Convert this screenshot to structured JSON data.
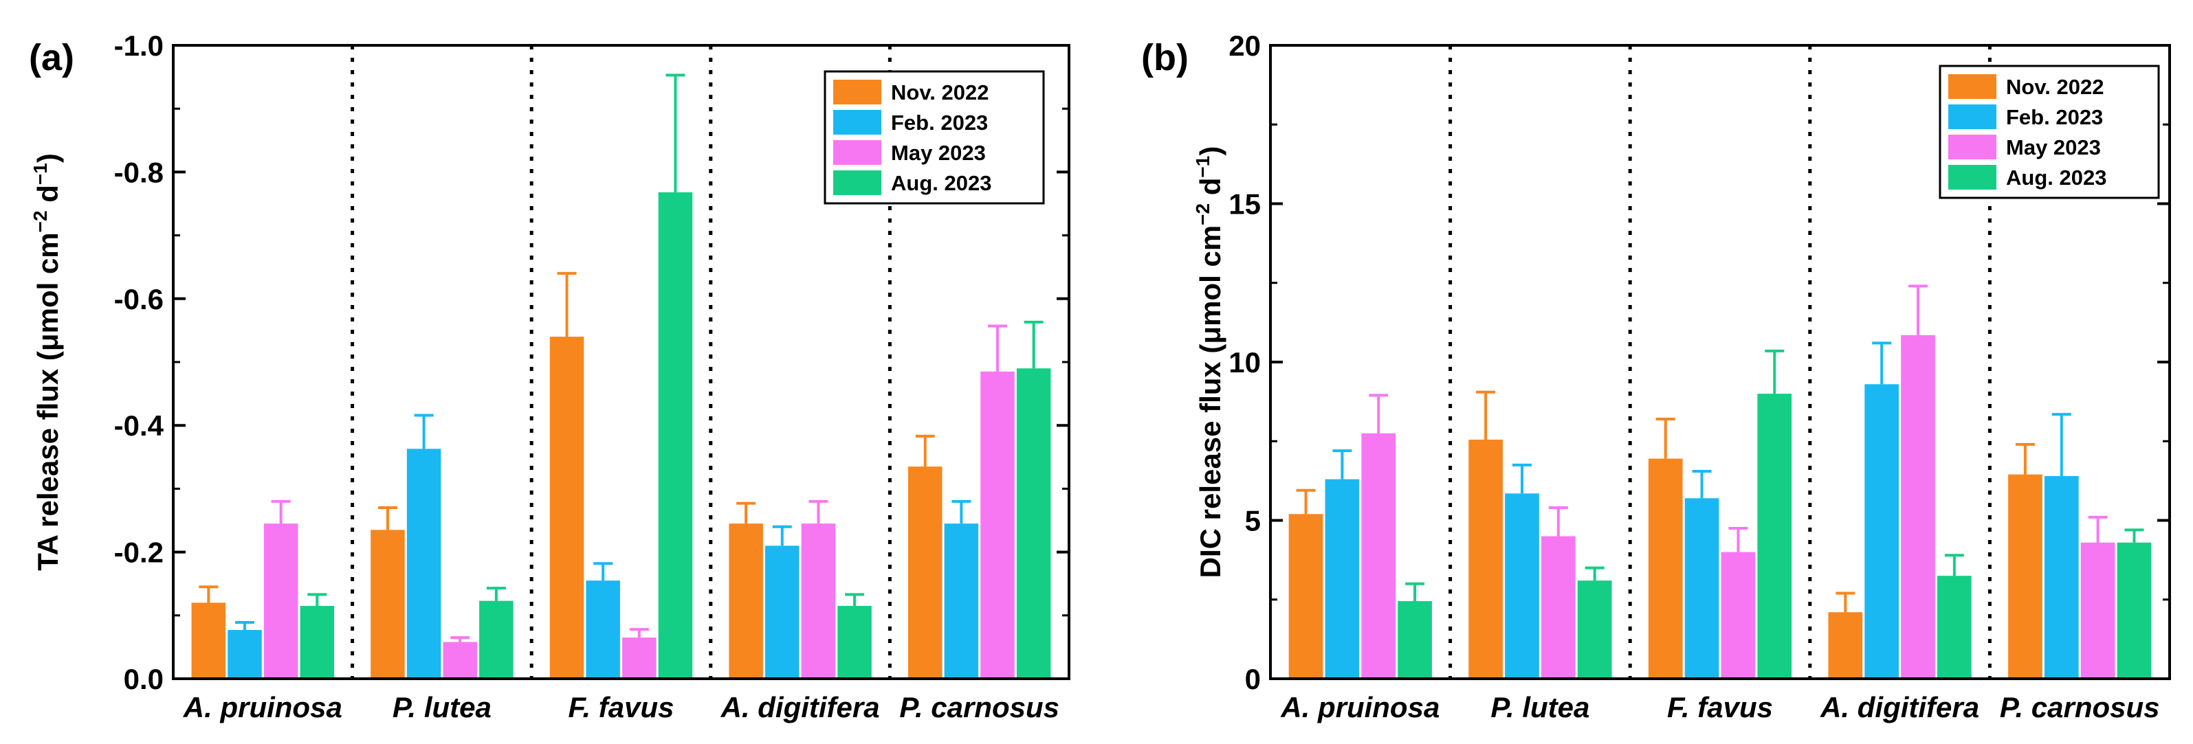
{
  "chart_data": [
    {
      "type": "bar",
      "panel_label": "(a)",
      "ylabel_main": "TA release flux (μmol cm",
      "ylabel_exp1": "−2",
      "ylabel_mid": " d",
      "ylabel_exp2": "−1",
      "ylabel_end": ")",
      "ylim": [
        0,
        -1.0
      ],
      "yticks": [
        0.0,
        -0.2,
        -0.4,
        -0.6,
        -0.8,
        -1.0
      ],
      "ytick_labels": [
        "0.0",
        "-0.2",
        "-0.4",
        "-0.6",
        "-0.8",
        "-1.0"
      ],
      "categories": [
        "A. pruinosa",
        "P. lutea",
        "F. favus",
        "A. digitifera",
        "P. carnosus"
      ],
      "legend_position": "top-right",
      "grid": false,
      "series": [
        {
          "name": "Nov. 2022",
          "color": "#F7861E",
          "values": [
            -0.12,
            -0.235,
            -0.54,
            -0.245,
            -0.335
          ],
          "errors": [
            0.025,
            0.035,
            0.1,
            0.032,
            0.048
          ]
        },
        {
          "name": "Feb. 2023",
          "color": "#1AB8F2",
          "values": [
            -0.077,
            -0.363,
            -0.155,
            -0.21,
            -0.245
          ],
          "errors": [
            0.012,
            0.053,
            0.027,
            0.03,
            0.035
          ]
        },
        {
          "name": "May 2023",
          "color": "#F777F2",
          "values": [
            -0.245,
            -0.058,
            -0.065,
            -0.245,
            -0.485
          ],
          "errors": [
            0.035,
            0.007,
            0.013,
            0.035,
            0.072
          ]
        },
        {
          "name": "Aug. 2023",
          "color": "#14CE86",
          "values": [
            -0.115,
            -0.123,
            -0.768,
            -0.115,
            -0.49
          ],
          "errors": [
            0.018,
            0.02,
            0.185,
            0.018,
            0.073
          ]
        }
      ]
    },
    {
      "type": "bar",
      "panel_label": "(b)",
      "ylabel_main": "DIC release flux (μmol cm",
      "ylabel_exp1": "−2",
      "ylabel_mid": " d",
      "ylabel_exp2": "−1",
      "ylabel_end": ")",
      "ylim": [
        0,
        20
      ],
      "yticks": [
        0,
        5,
        10,
        15,
        20
      ],
      "ytick_labels": [
        "0",
        "5",
        "10",
        "15",
        "20"
      ],
      "categories": [
        "A. pruinosa",
        "P. lutea",
        "F. favus",
        "A. digitifera",
        "P. carnosus"
      ],
      "legend_position": "top-right",
      "grid": false,
      "series": [
        {
          "name": "Nov. 2022",
          "color": "#F7861E",
          "values": [
            5.2,
            7.55,
            6.95,
            2.1,
            6.45
          ],
          "errors": [
            0.75,
            1.5,
            1.25,
            0.6,
            0.95
          ]
        },
        {
          "name": "Feb. 2023",
          "color": "#1AB8F2",
          "values": [
            6.3,
            5.85,
            5.7,
            9.3,
            6.4
          ],
          "errors": [
            0.9,
            0.9,
            0.85,
            1.3,
            1.95
          ]
        },
        {
          "name": "May 2023",
          "color": "#F777F2",
          "values": [
            7.75,
            4.5,
            4.0,
            10.85,
            4.3
          ],
          "errors": [
            1.2,
            0.9,
            0.75,
            1.55,
            0.8
          ]
        },
        {
          "name": "Aug. 2023",
          "color": "#14CE86",
          "values": [
            2.45,
            3.1,
            9.0,
            3.25,
            4.3
          ],
          "errors": [
            0.55,
            0.4,
            1.35,
            0.65,
            0.4
          ]
        }
      ]
    }
  ]
}
